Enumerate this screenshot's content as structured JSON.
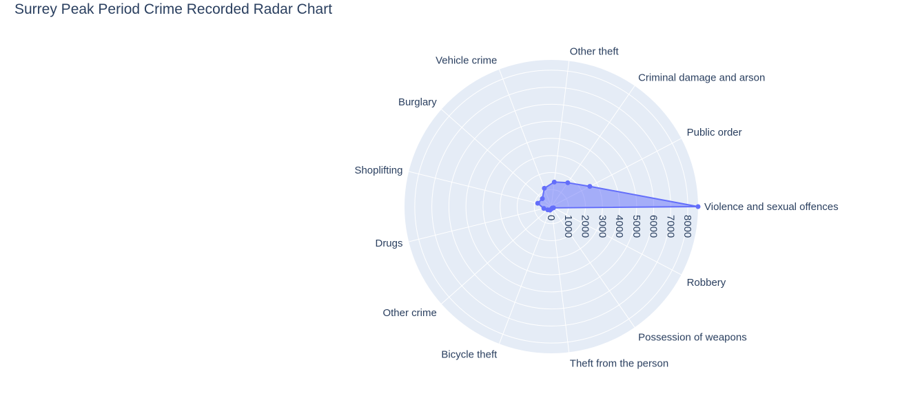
{
  "chart_data": {
    "type": "radar",
    "title": "Surrey Peak Period Crime Recorded Radar Chart",
    "categories": [
      "Violence and sexual offences",
      "Public order",
      "Criminal damage and arson",
      "Other theft",
      "Vehicle crime",
      "Burglary",
      "Shoplifting",
      "Drugs",
      "Other crime",
      "Bicycle theft",
      "Theft from the person",
      "Possession of weapons",
      "Robbery"
    ],
    "values": [
      8600,
      2550,
      1700,
      1450,
      1150,
      700,
      820,
      450,
      280,
      220,
      130,
      100,
      150
    ],
    "radial_axis": {
      "range": [
        0,
        8600
      ],
      "tick_values": [
        0,
        1000,
        2000,
        3000,
        4000,
        5000,
        6000,
        7000,
        8000
      ],
      "tick_labels": [
        "0",
        "1000",
        "2000",
        "3000",
        "4000",
        "5000",
        "6000",
        "7000",
        "8000"
      ]
    },
    "colors": {
      "line": "#636efa",
      "fill": "rgba(99,110,250,0.5)",
      "polar_bg": "#e5ecf6",
      "grid": "#ffffff",
      "text": "#2a3f5f"
    },
    "grid": true,
    "legend": "none"
  }
}
